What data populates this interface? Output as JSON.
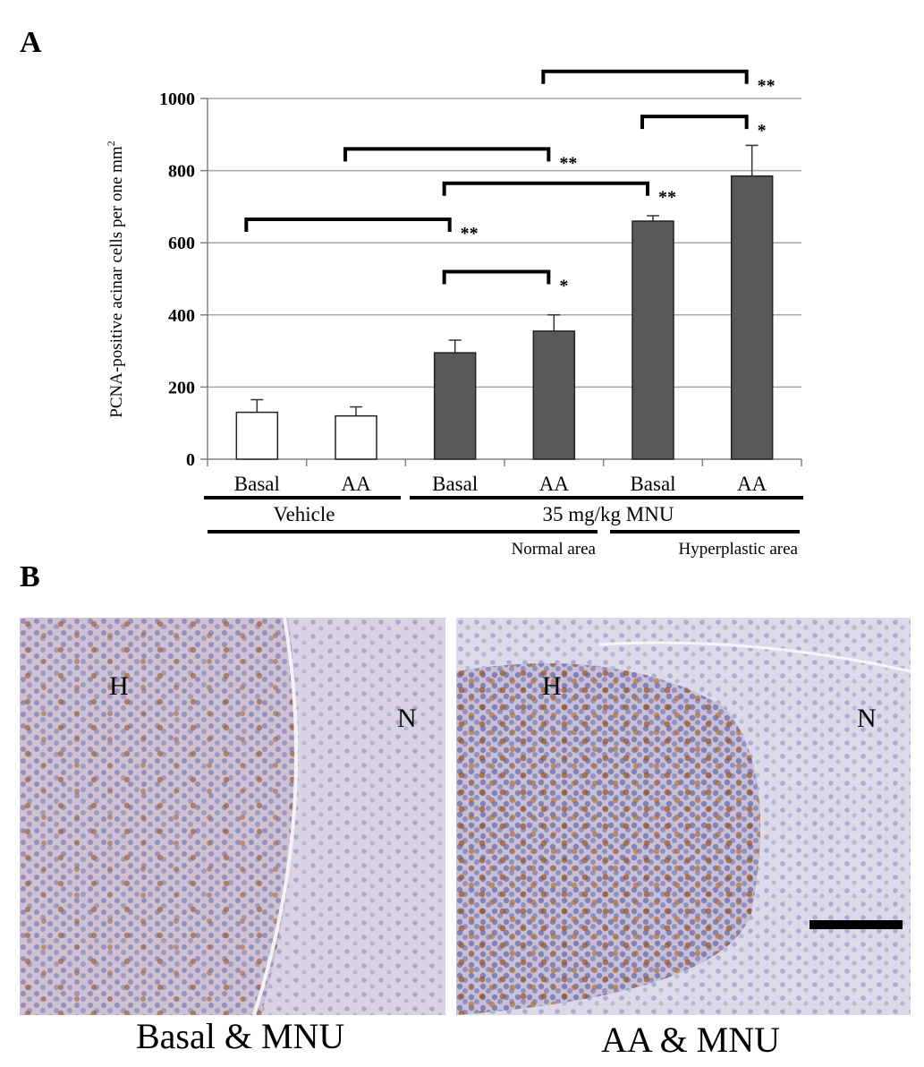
{
  "panel_labels": {
    "a": "A",
    "b": "B"
  },
  "chart_data": {
    "type": "bar",
    "ylabel": "PCNA-positive acinar cells per one mm",
    "ylabel_superscript": "2",
    "ylim": [
      0,
      1000
    ],
    "yticks": [
      0,
      200,
      400,
      600,
      800,
      1000
    ],
    "grid": true,
    "categories": [
      "Basal",
      "AA",
      "Basal",
      "AA",
      "Basal",
      "AA"
    ],
    "values": [
      130,
      120,
      295,
      355,
      660,
      785
    ],
    "errors": [
      35,
      25,
      35,
      45,
      15,
      85
    ],
    "bar_colors": [
      "#ffffff",
      "#ffffff",
      "#595959",
      "#595959",
      "#595959",
      "#595959"
    ],
    "group_labels": {
      "vehicle": "Vehicle",
      "mnu": "35 mg/kg MNU"
    },
    "area_labels": {
      "normal": "Normal area",
      "hyperplastic": "Hyperplastic area"
    },
    "significance": [
      {
        "from": 0,
        "to": 2,
        "top": 665,
        "label": "**"
      },
      {
        "from": 1,
        "to": 3,
        "top": 860,
        "label": "**"
      },
      {
        "from": 2,
        "to": 3,
        "top": 520,
        "label": "*"
      },
      {
        "from": 2,
        "to": 4,
        "top": 765,
        "label": "**"
      },
      {
        "from": 3,
        "to": 5,
        "top": 1075,
        "label": "**"
      },
      {
        "from": 4,
        "to": 5,
        "top": 950,
        "label": "*"
      }
    ]
  },
  "panel_b": {
    "left_caption": "Basal & MNU",
    "right_caption": "AA & MNU",
    "region_h": "H",
    "region_n": "N"
  }
}
